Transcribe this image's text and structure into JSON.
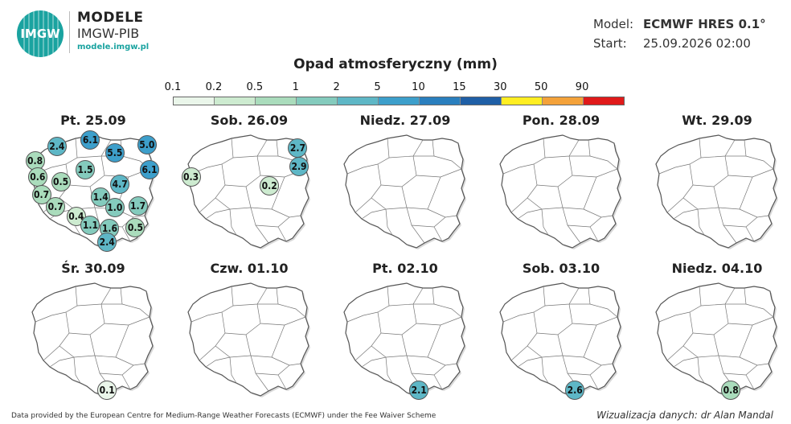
{
  "header": {
    "logo_text": "IMGW",
    "brand_line1": "MODELE",
    "brand_line2": "IMGW-PIB",
    "brand_url": "modele.imgw.pl",
    "model_key": "Model:",
    "model_value": "ECMWF HRES 0.1°",
    "start_key": "Start:",
    "start_value": "25.09.2026 02:00"
  },
  "legend": {
    "title": "Opad atmosferyczny (mm)",
    "labels": [
      "0.1",
      "0.2",
      "0.5",
      "1",
      "2",
      "5",
      "10",
      "15",
      "30",
      "50",
      "90"
    ],
    "colors": [
      "#eaf6ea",
      "#cdebd0",
      "#aadcbc",
      "#84cbbd",
      "#5eb7c6",
      "#3d9fcb",
      "#2a7fbe",
      "#1f5fa6",
      "#ffee22",
      "#f4a23a",
      "#e01a1a"
    ]
  },
  "panels": [
    {
      "day": "Pt. 25.09",
      "points": [
        {
          "v": "0.8",
          "x": 0.06,
          "y": 0.25
        },
        {
          "v": "2.4",
          "x": 0.23,
          "y": 0.12
        },
        {
          "v": "6.1",
          "x": 0.49,
          "y": 0.06
        },
        {
          "v": "5.0",
          "x": 0.93,
          "y": 0.1
        },
        {
          "v": "5.5",
          "x": 0.68,
          "y": 0.18
        },
        {
          "v": "6.1",
          "x": 0.95,
          "y": 0.33
        },
        {
          "v": "1.5",
          "x": 0.45,
          "y": 0.33
        },
        {
          "v": "0.6",
          "x": 0.08,
          "y": 0.4
        },
        {
          "v": "0.5",
          "x": 0.26,
          "y": 0.44
        },
        {
          "v": "4.7",
          "x": 0.72,
          "y": 0.46
        },
        {
          "v": "0.7",
          "x": 0.11,
          "y": 0.56
        },
        {
          "v": "1.4",
          "x": 0.57,
          "y": 0.58
        },
        {
          "v": "0.7",
          "x": 0.22,
          "y": 0.67
        },
        {
          "v": "1.0",
          "x": 0.68,
          "y": 0.68
        },
        {
          "v": "1.7",
          "x": 0.86,
          "y": 0.66
        },
        {
          "v": "0.4",
          "x": 0.38,
          "y": 0.76
        },
        {
          "v": "1.1",
          "x": 0.49,
          "y": 0.84
        },
        {
          "v": "1.6",
          "x": 0.64,
          "y": 0.87
        },
        {
          "v": "0.5",
          "x": 0.84,
          "y": 0.86
        },
        {
          "v": "2.4",
          "x": 0.62,
          "y": 0.99
        }
      ]
    },
    {
      "day": "Sob. 26.09",
      "points": [
        {
          "v": "2.7",
          "x": 0.89,
          "y": 0.13
        },
        {
          "v": "2.9",
          "x": 0.9,
          "y": 0.3
        },
        {
          "v": "0.3",
          "x": 0.06,
          "y": 0.4
        },
        {
          "v": "0.2",
          "x": 0.67,
          "y": 0.48
        }
      ]
    },
    {
      "day": "Niedz. 27.09",
      "points": []
    },
    {
      "day": "Pon. 28.09",
      "points": []
    },
    {
      "day": "Wt. 29.09",
      "points": []
    },
    {
      "day": "Śr. 30.09",
      "points": [
        {
          "v": "0.1",
          "x": 0.62,
          "y": 0.99
        }
      ]
    },
    {
      "day": "Czw. 01.10",
      "points": []
    },
    {
      "day": "Pt. 02.10",
      "points": [
        {
          "v": "2.1",
          "x": 0.62,
          "y": 0.99
        }
      ]
    },
    {
      "day": "Sob. 03.10",
      "points": [
        {
          "v": "2.6",
          "x": 0.62,
          "y": 0.99
        }
      ]
    },
    {
      "day": "Niedz. 04.10",
      "points": [
        {
          "v": "0.8",
          "x": 0.62,
          "y": 0.99
        }
      ]
    }
  ],
  "footer": {
    "source": "Data provided by the European Centre for Medium-Range Weather Forecasts (ECMWF) under the Fee Waiver Scheme",
    "credit": "Wizualizacja danych: dr Alan Mandal"
  }
}
